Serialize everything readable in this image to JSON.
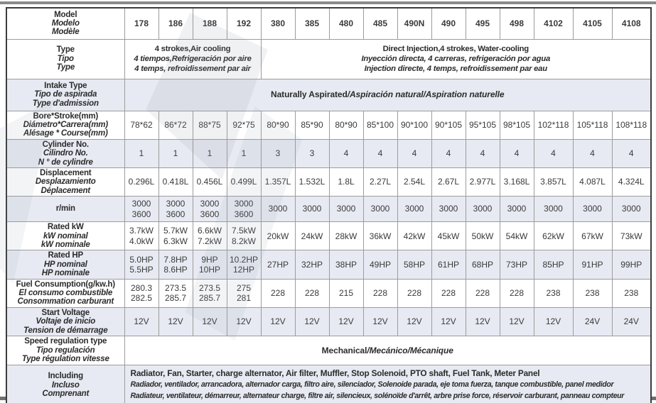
{
  "separator": "/",
  "colors": {
    "row_shade": "#e7eaf2",
    "grid_line": "#9c9c9c",
    "outer_border": "#3c3c3c",
    "text": "#2b2b2b",
    "top_rule": "#8a8a8a",
    "bottom_rule": "#707070"
  },
  "table": {
    "rows": [
      {
        "id": "model",
        "shade": false,
        "header": true,
        "label": [
          "Model",
          "Modelo",
          "Modèle"
        ],
        "cells": [
          "178",
          "186",
          "188",
          "192",
          "380",
          "385",
          "480",
          "485",
          "490N",
          "490",
          "495",
          "498",
          "4102",
          "4105",
          "4108"
        ]
      },
      {
        "id": "type",
        "shade": false,
        "label": [
          "Type",
          "Tipo",
          "Type"
        ],
        "spans": [
          {
            "cols": 4,
            "lines": [
              "4 strokes,Air cooling",
              "4 tiempos,Refrigeración por aire",
              "4 temps, refroidissement par air"
            ]
          },
          {
            "cols": 11,
            "lines": [
              "Direct Injection,4 strokes, Water-cooling",
              "Inyección directa, 4 carreras, refrigeración por agua",
              "Injection directe, 4 temps, refroidissement par eau"
            ]
          }
        ]
      },
      {
        "id": "intake",
        "shade": true,
        "label": [
          "Intake Type",
          "Tipo de aspirada",
          "Type d'admission"
        ],
        "spans": [
          {
            "cols": 15,
            "lines": [
              [
                "Naturally Aspirated",
                "Aspiración natural",
                "Aspiration naturelle"
              ]
            ]
          }
        ]
      },
      {
        "id": "bore",
        "shade": false,
        "label": [
          "Bore*Stroke(mm)",
          "Diámetro*Carrera(mm)",
          "Alésage * Course(mm)"
        ],
        "cells": [
          "78*62",
          "86*72",
          "88*75",
          "92*75",
          "80*90",
          "85*90",
          "80*90",
          "85*100",
          "90*100",
          "90*105",
          "95*105",
          "98*105",
          "102*118",
          "105*118",
          "108*118"
        ]
      },
      {
        "id": "cylinder",
        "shade": true,
        "label": [
          "Cylinder No.",
          "Cilindro No.",
          "N ° de cylindre"
        ],
        "cells": [
          "1",
          "1",
          "1",
          "1",
          "3",
          "3",
          "4",
          "4",
          "4",
          "4",
          "4",
          "4",
          "4",
          "4",
          "4"
        ]
      },
      {
        "id": "displacement",
        "shade": false,
        "label": [
          "Displacement",
          "Desplazamiento",
          "Déplacement"
        ],
        "cells": [
          "0.296L",
          "0.418L",
          "0.456L",
          "0.499L",
          "1.357L",
          "1.532L",
          "1.8L",
          "2.27L",
          "2.54L",
          "2.67L",
          "2.977L",
          "3.168L",
          "3.857L",
          "4.087L",
          "4.324L"
        ]
      },
      {
        "id": "rmin",
        "shade": true,
        "label": [
          "r/min"
        ],
        "cells": [
          "3000\n3600",
          "3000\n3600",
          "3000\n3600",
          "3000\n3600",
          "3000",
          "3000",
          "3000",
          "3000",
          "3000",
          "3000",
          "3000",
          "3000",
          "3000",
          "3000",
          "3000"
        ]
      },
      {
        "id": "kw",
        "shade": false,
        "label": [
          "Rated kW",
          "kW nominal",
          "kW nominale"
        ],
        "cells": [
          "3.7kW\n4.0kW",
          "5.7kW\n6.3kW",
          "6.6kW\n7.2kW",
          "7.5kW\n8.2kW",
          "20kW",
          "24kW",
          "28kW",
          "36kW",
          "42kW",
          "45kW",
          "50kW",
          "54kW",
          "62kW",
          "67kW",
          "73kW"
        ]
      },
      {
        "id": "hp",
        "shade": true,
        "label": [
          "Rated HP",
          "HP nominal",
          "HP nominale"
        ],
        "cells": [
          "5.0HP\n5.5HP",
          "7.8HP\n8.6HP",
          "9HP\n10HP",
          "10.2HP\n12HP",
          "27HP",
          "32HP",
          "38HP",
          "49HP",
          "58HP",
          "61HP",
          "68HP",
          "73HP",
          "85HP",
          "91HP",
          "99HP"
        ]
      },
      {
        "id": "fuel",
        "shade": false,
        "label": [
          "Fuel Consumption(g/kw.h)",
          "El consumo combustible",
          "Consommation carburant"
        ],
        "cells": [
          "280.3\n282.5",
          "273.5\n285.7",
          "273.5\n285.7",
          "275\n281",
          "228",
          "228",
          "215",
          "228",
          "228",
          "228",
          "228",
          "228",
          "238",
          "238",
          "238"
        ]
      },
      {
        "id": "voltage",
        "shade": true,
        "label": [
          "Start Voltage",
          "Voltaje de inicio",
          "Tension de démarrage"
        ],
        "cells": [
          "12V",
          "12V",
          "12V",
          "12V",
          "12V",
          "12V",
          "12V",
          "12V",
          "12V",
          "12V",
          "12V",
          "12V",
          "12V",
          "24V",
          "24V"
        ]
      },
      {
        "id": "speed",
        "shade": false,
        "label": [
          "Speed regulation type",
          "Tipo regulación",
          "Type régulation vitesse"
        ],
        "spans": [
          {
            "cols": 15,
            "lines": [
              [
                "Mechanical",
                "Mecánico",
                "Mécanique"
              ]
            ]
          }
        ]
      },
      {
        "id": "including",
        "shade": true,
        "label": [
          "Including",
          "Incluso",
          "Comprenant"
        ],
        "spans": [
          {
            "cols": 15,
            "align": "left",
            "lines": [
              "Radiator, Fan, Starter, charge alternator, Air filter, Muffler, Stop Solenoid, PTO shaft, Fuel Tank, Meter Panel",
              "Radiador, ventilador, arrancadora, alternador carga, filtro aire, silenciador, Solenoide parada, eje toma fuerza, tanque combustible, panel medidor",
              "Radiateur, ventilateur, démarreur, alternateur charge, filtre air, silencieux, solénoïde d'arrêt, arbre prise force, réservoir carburant, panneau compteur"
            ]
          }
        ]
      }
    ]
  }
}
